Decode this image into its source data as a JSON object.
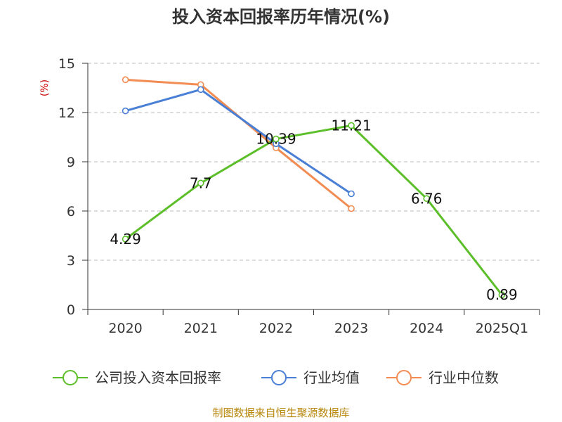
{
  "chart_data": {
    "type": "line",
    "title": "投入资本回报率历年情况(%)",
    "ylabel": "(%)",
    "xlabel": "",
    "categories": [
      "2020",
      "2021",
      "2022",
      "2023",
      "2024",
      "2025Q1"
    ],
    "ylim": [
      0,
      15
    ],
    "yticks": [
      0,
      3,
      6,
      9,
      12,
      15
    ],
    "grid": "horizontal-dashed",
    "legend_position": "bottom",
    "series": [
      {
        "name": "公司投入资本回报率",
        "color": "#5cbf2a",
        "values": [
          4.29,
          7.7,
          10.39,
          11.21,
          6.76,
          0.89
        ],
        "labels": [
          "4.29",
          "7.7",
          "10.39",
          "11.21",
          "6.76",
          "0.89"
        ]
      },
      {
        "name": "行业均值",
        "color": "#4a7fd6",
        "values": [
          12.1,
          13.4,
          10.1,
          7.05,
          null,
          null
        ]
      },
      {
        "name": "行业中位数",
        "color": "#f28c52",
        "values": [
          14.0,
          13.7,
          9.85,
          6.15,
          null,
          null
        ]
      }
    ],
    "source": "制图数据来自恒生聚源数据库"
  }
}
